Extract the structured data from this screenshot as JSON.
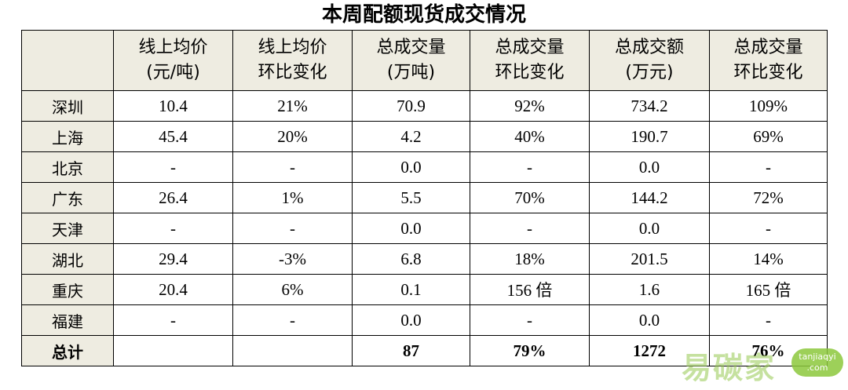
{
  "title": "本周配额现货成交情况",
  "header": [
    {
      "line1": "",
      "line2": ""
    },
    {
      "line1": "线上均价",
      "line2": "(元/吨)"
    },
    {
      "line1": "线上均价",
      "line2": "环比变化"
    },
    {
      "line1": "总成交量",
      "line2": "(万吨)"
    },
    {
      "line1": "总成交量",
      "line2": "环比变化"
    },
    {
      "line1": "总成交额",
      "line2": "(万元)"
    },
    {
      "line1": "总成交量",
      "line2": "环比变化"
    }
  ],
  "rows": [
    {
      "city": "深圳",
      "price": "10.4",
      "price_change": "21%",
      "volume": "70.9",
      "volume_change": "92%",
      "amount": "734.2",
      "amount_change": "109%"
    },
    {
      "city": "上海",
      "price": "45.4",
      "price_change": "20%",
      "volume": "4.2",
      "volume_change": "40%",
      "amount": "190.7",
      "amount_change": "69%"
    },
    {
      "city": "北京",
      "price": "-",
      "price_change": "-",
      "volume": "0.0",
      "volume_change": "-",
      "amount": "0.0",
      "amount_change": "-"
    },
    {
      "city": "广东",
      "price": "26.4",
      "price_change": "1%",
      "volume": "5.5",
      "volume_change": "70%",
      "amount": "144.2",
      "amount_change": "72%"
    },
    {
      "city": "天津",
      "price": "-",
      "price_change": "-",
      "volume": "0.0",
      "volume_change": "-",
      "amount": "0.0",
      "amount_change": "-"
    },
    {
      "city": "湖北",
      "price": "29.4",
      "price_change": "-3%",
      "volume": "6.8",
      "volume_change": "18%",
      "amount": "201.5",
      "amount_change": "14%"
    },
    {
      "city": "重庆",
      "price": "20.4",
      "price_change": "6%",
      "volume": "0.1",
      "volume_change": "156 倍",
      "amount": "1.6",
      "amount_change": "165 倍"
    },
    {
      "city": "福建",
      "price": "-",
      "price_change": "-",
      "volume": "0.0",
      "volume_change": "-",
      "amount": "0.0",
      "amount_change": "-"
    }
  ],
  "total": {
    "city": "总计",
    "price": "",
    "price_change": "",
    "volume": "87",
    "volume_change": "79%",
    "amount": "1272",
    "amount_change": "76%"
  },
  "colors": {
    "up": "#c0272d",
    "down": "#1e9e4a",
    "header_bg": "#eeece1"
  },
  "watermark": {
    "text": "易碳家",
    "badge_line1": "tanjiaqyi",
    "badge_line2": ".com"
  }
}
